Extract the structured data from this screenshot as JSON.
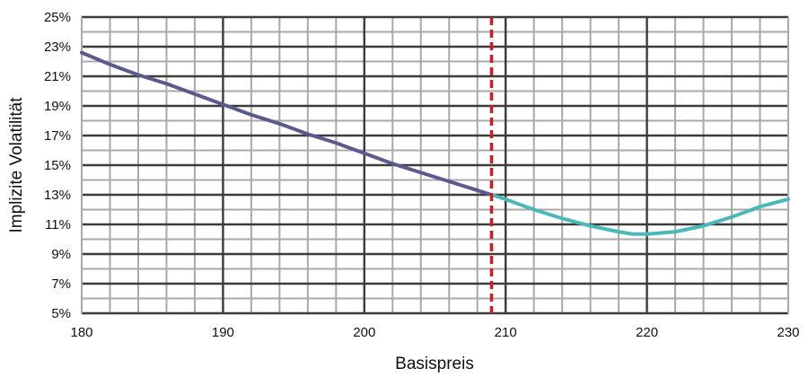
{
  "chart_data": {
    "type": "line",
    "xlabel": "Basispreis",
    "ylabel": "Implizite Volatilität",
    "xlim": [
      180,
      230
    ],
    "ylim": [
      5,
      25
    ],
    "x_ticks": [
      180,
      190,
      200,
      210,
      220,
      230
    ],
    "x_tick_labels": [
      "180",
      "190",
      "200",
      "210",
      "220",
      "230"
    ],
    "y_ticks": [
      5,
      7,
      9,
      11,
      13,
      15,
      17,
      19,
      21,
      23,
      25
    ],
    "y_tick_labels": [
      "5%",
      "7%",
      "9%",
      "11%",
      "13%",
      "15%",
      "17%",
      "19%",
      "21%",
      "23%",
      "25%"
    ],
    "x_grid_step": 2,
    "y_grid_step": 1,
    "grid": true,
    "legend": "none",
    "reference_line": {
      "x": 209,
      "style": "dashed",
      "color": "#c0222a"
    },
    "series": [
      {
        "color": "#5b5a8e",
        "points": [
          [
            180,
            22.6
          ],
          [
            182,
            21.8
          ],
          [
            184,
            21.1
          ],
          [
            186,
            20.5
          ],
          [
            188,
            19.8
          ],
          [
            190,
            19.1
          ],
          [
            192,
            18.4
          ],
          [
            194,
            17.8
          ],
          [
            196,
            17.1
          ],
          [
            198,
            16.5
          ],
          [
            200,
            15.8
          ],
          [
            202,
            15.1
          ],
          [
            204,
            14.5
          ],
          [
            206,
            13.9
          ],
          [
            208,
            13.3
          ],
          [
            209,
            13.0
          ]
        ]
      },
      {
        "color": "#4bb8b8",
        "points": [
          [
            209,
            13.0
          ],
          [
            210,
            12.7
          ],
          [
            212,
            12.0
          ],
          [
            214,
            11.4
          ],
          [
            216,
            10.9
          ],
          [
            218,
            10.5
          ],
          [
            219,
            10.35
          ],
          [
            220,
            10.35
          ],
          [
            222,
            10.5
          ],
          [
            224,
            10.9
          ],
          [
            226,
            11.5
          ],
          [
            228,
            12.2
          ],
          [
            230,
            12.7
          ]
        ]
      }
    ]
  }
}
